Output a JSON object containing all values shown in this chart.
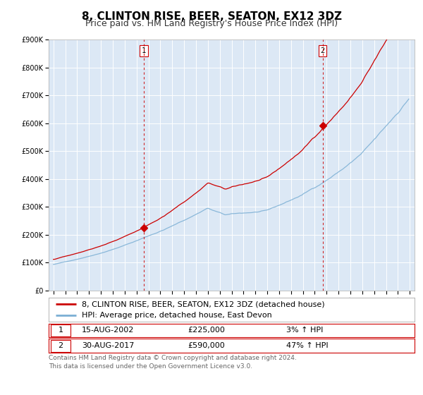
{
  "title": "8, CLINTON RISE, BEER, SEATON, EX12 3DZ",
  "subtitle": "Price paid vs. HM Land Registry's House Price Index (HPI)",
  "year_start": 1995,
  "year_end": 2025,
  "ymin": 0,
  "ymax": 900000,
  "yticks": [
    0,
    100000,
    200000,
    300000,
    400000,
    500000,
    600000,
    700000,
    800000,
    900000
  ],
  "ytick_labels": [
    "£0",
    "£100K",
    "£200K",
    "£300K",
    "£400K",
    "£500K",
    "£600K",
    "£700K",
    "£800K",
    "£900K"
  ],
  "fig_bg_color": "#ffffff",
  "plot_bg_color": "#dce8f5",
  "outer_bg_color": "#f0f0f0",
  "grid_color": "#ffffff",
  "red_line_color": "#cc0000",
  "blue_line_color": "#7bafd4",
  "marker_color": "#cc0000",
  "vline_color": "#cc0000",
  "sale1_year": 2002.625,
  "sale1_value": 225000,
  "sale2_year": 2017.667,
  "sale2_value": 590000,
  "sale1_date": "15-AUG-2002",
  "sale1_price": "£225,000",
  "sale1_hpi": "3% ↑ HPI",
  "sale2_date": "30-AUG-2017",
  "sale2_price": "£590,000",
  "sale2_hpi": "47% ↑ HPI",
  "legend_label1": "8, CLINTON RISE, BEER, SEATON, EX12 3DZ (detached house)",
  "legend_label2": "HPI: Average price, detached house, East Devon",
  "footnote1": "Contains HM Land Registry data © Crown copyright and database right 2024.",
  "footnote2": "This data is licensed under the Open Government Licence v3.0.",
  "title_fontsize": 11,
  "subtitle_fontsize": 9,
  "tick_fontsize": 7,
  "legend_fontsize": 8,
  "info_fontsize": 8,
  "footnote_fontsize": 6.5
}
